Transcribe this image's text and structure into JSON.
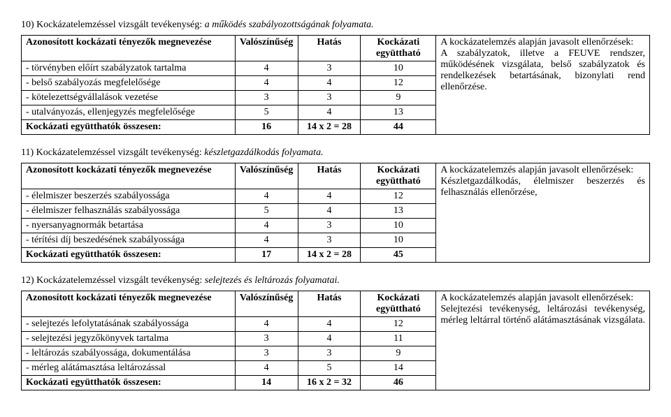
{
  "sections": [
    {
      "title_prefix": "10) Kockázatelemzéssel vizsgált tevékenység: ",
      "title_italic": "a működés szabályozottságának folyamata.",
      "headers": {
        "name": "Azonosított kockázati tényezők megnevezése",
        "val": "Valószínűség",
        "hatas": "Hatás",
        "koef": "Kockázati együttható",
        "note": "A kockázatelemzés alapján javasolt ellenőrzések:"
      },
      "rows": [
        {
          "name": "- törvényben előírt szabályzatok tartalma",
          "val": "4",
          "hatas": "3",
          "koef": "10"
        },
        {
          "name": "- belső szabályozás megfelelősége",
          "val": "4",
          "hatas": "4",
          "koef": "12"
        },
        {
          "name": "- kötelezettségvállalások vezetése",
          "val": "3",
          "hatas": "3",
          "koef": "9"
        },
        {
          "name": "- utalványozás, ellenjegyzés megfelelősége",
          "val": "5",
          "hatas": "4",
          "koef": "13"
        }
      ],
      "total": {
        "label": "Kockázati együtthatók összesen:",
        "val": "16",
        "hatas": "14 x 2 = 28",
        "koef": "44"
      },
      "note_text": "A szabályzatok, illetve a FEUVE rendszer, működésének vizsgálata, belső szabályzatok és rendelkezések betartásának, bizonylati rend ellenőrzése."
    },
    {
      "title_prefix": "11) Kockázatelemzéssel vizsgált tevékenység: ",
      "title_italic": "készletgazdálkodás folyamata.",
      "headers": {
        "name": "Azonosított kockázati tényezők megnevezése",
        "val": "Valószínűség",
        "hatas": "Hatás",
        "koef": "Kockázati együttható",
        "note": "A kockázatelemzés alapján javasolt ellenőrzések:"
      },
      "rows": [
        {
          "name": "- élelmiszer beszerzés szabályossága",
          "val": "4",
          "hatas": "4",
          "koef": "12"
        },
        {
          "name": "- élelmiszer felhasználás szabályossága",
          "val": "5",
          "hatas": "4",
          "koef": "13"
        },
        {
          "name": "- nyersanyagnormák betartása",
          "val": "4",
          "hatas": "3",
          "koef": "10"
        },
        {
          "name": "- térítési díj beszedésének szabályossága",
          "val": "4",
          "hatas": "3",
          "koef": "10"
        }
      ],
      "total": {
        "label": "Kockázati együtthatók összesen:",
        "val": "17",
        "hatas": "14 x 2 = 28",
        "koef": "45"
      },
      "note_text": "Készletgazdálkodás, élelmiszer beszerzés és felhasználás ellenőrzése,"
    },
    {
      "title_prefix": "12) Kockázatelemzéssel vizsgált tevékenység: ",
      "title_italic": "selejtezés és leltározás folyamatai.",
      "headers": {
        "name": "Azonosított kockázati tényezők megnevezése",
        "val": "Valószínűség",
        "hatas": "Hatás",
        "koef": "Kockázati együttható",
        "note": "A kockázatelemzés alapján javasolt ellenőrzések:"
      },
      "rows": [
        {
          "name": "- selejtezés lefolytatásának szabályossága",
          "val": "4",
          "hatas": "4",
          "koef": "12"
        },
        {
          "name": "- selejtezési jegyzőkönyvek tartalma",
          "val": "3",
          "hatas": "4",
          "koef": "11"
        },
        {
          "name": "- leltározás szabályossága, dokumentálása",
          "val": "3",
          "hatas": "3",
          "koef": "9"
        },
        {
          "name": "- mérleg alátámasztása leltározással",
          "val": "4",
          "hatas": "5",
          "koef": "14"
        }
      ],
      "total": {
        "label": "Kockázati együtthatók összesen:",
        "val": "14",
        "hatas": "16 x 2 = 32",
        "koef": "46"
      },
      "note_text": "Selejtezési tevékenység, leltározási tevékenység, mérleg leltárral történő alátámasztásának vizsgálata."
    }
  ]
}
